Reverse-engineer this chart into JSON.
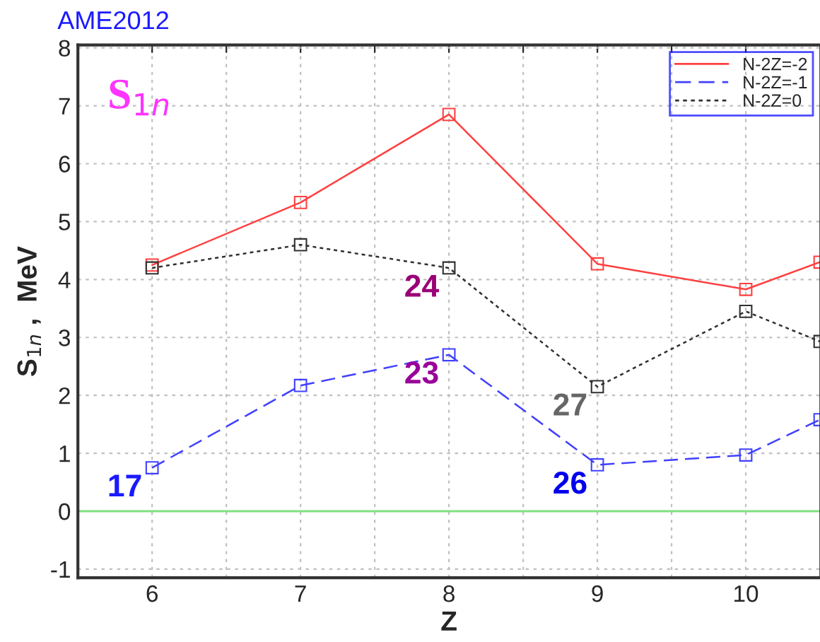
{
  "chart_data": {
    "type": "line",
    "xlabel": "Z",
    "ylabel": "S$_{1n}$ ,  MeV",
    "x": [
      6,
      7,
      8,
      9,
      10,
      10.5
    ],
    "series": [
      {
        "name": "N-2Z=-2",
        "color": "#ff4040",
        "values": [
          4.25,
          5.33,
          6.85,
          4.27,
          3.83,
          4.3
        ],
        "line_style": "solid"
      },
      {
        "name": "N-2Z=-1",
        "color": "#4040ff",
        "values": [
          0.75,
          2.17,
          2.7,
          0.8,
          0.97,
          1.58
        ],
        "line_style": "dashed"
      },
      {
        "name": "N-2Z=0",
        "color": "#303030",
        "values": [
          4.2,
          4.6,
          4.2,
          2.15,
          3.45,
          2.93
        ],
        "line_style": "dotted"
      }
    ],
    "marker": "square",
    "xlim": [
      5.5,
      10.5
    ],
    "ylim": [
      -1.15,
      8.05
    ],
    "xticks": [
      {
        "value": 5.5,
        "label": null
      },
      6,
      {
        "value": 6.5,
        "label": null
      },
      7,
      {
        "value": 7.5,
        "label": null
      },
      8,
      {
        "value": 8.5,
        "label": null
      },
      9,
      {
        "value": 9.5,
        "label": null
      },
      10
    ],
    "yticks": [
      -1,
      0,
      1,
      2,
      3,
      4,
      5,
      6,
      7,
      8
    ],
    "grid": true,
    "legend": "top right",
    "ref_lines": [
      {
        "axis": "y",
        "value": 0,
        "color": "#80e080"
      }
    ],
    "annotations": [
      "AME2012",
      "S$_{1n}$",
      {
        "text": "17",
        "x": 6,
        "y": 0.75
      },
      {
        "text": "23",
        "x": 8,
        "y": 2.7
      },
      {
        "text": "24",
        "x": 8,
        "y": 4.2
      },
      {
        "text": "26",
        "x": 9,
        "y": 0.8
      },
      {
        "text": "27",
        "x": 9,
        "y": 2.15
      }
    ]
  }
}
